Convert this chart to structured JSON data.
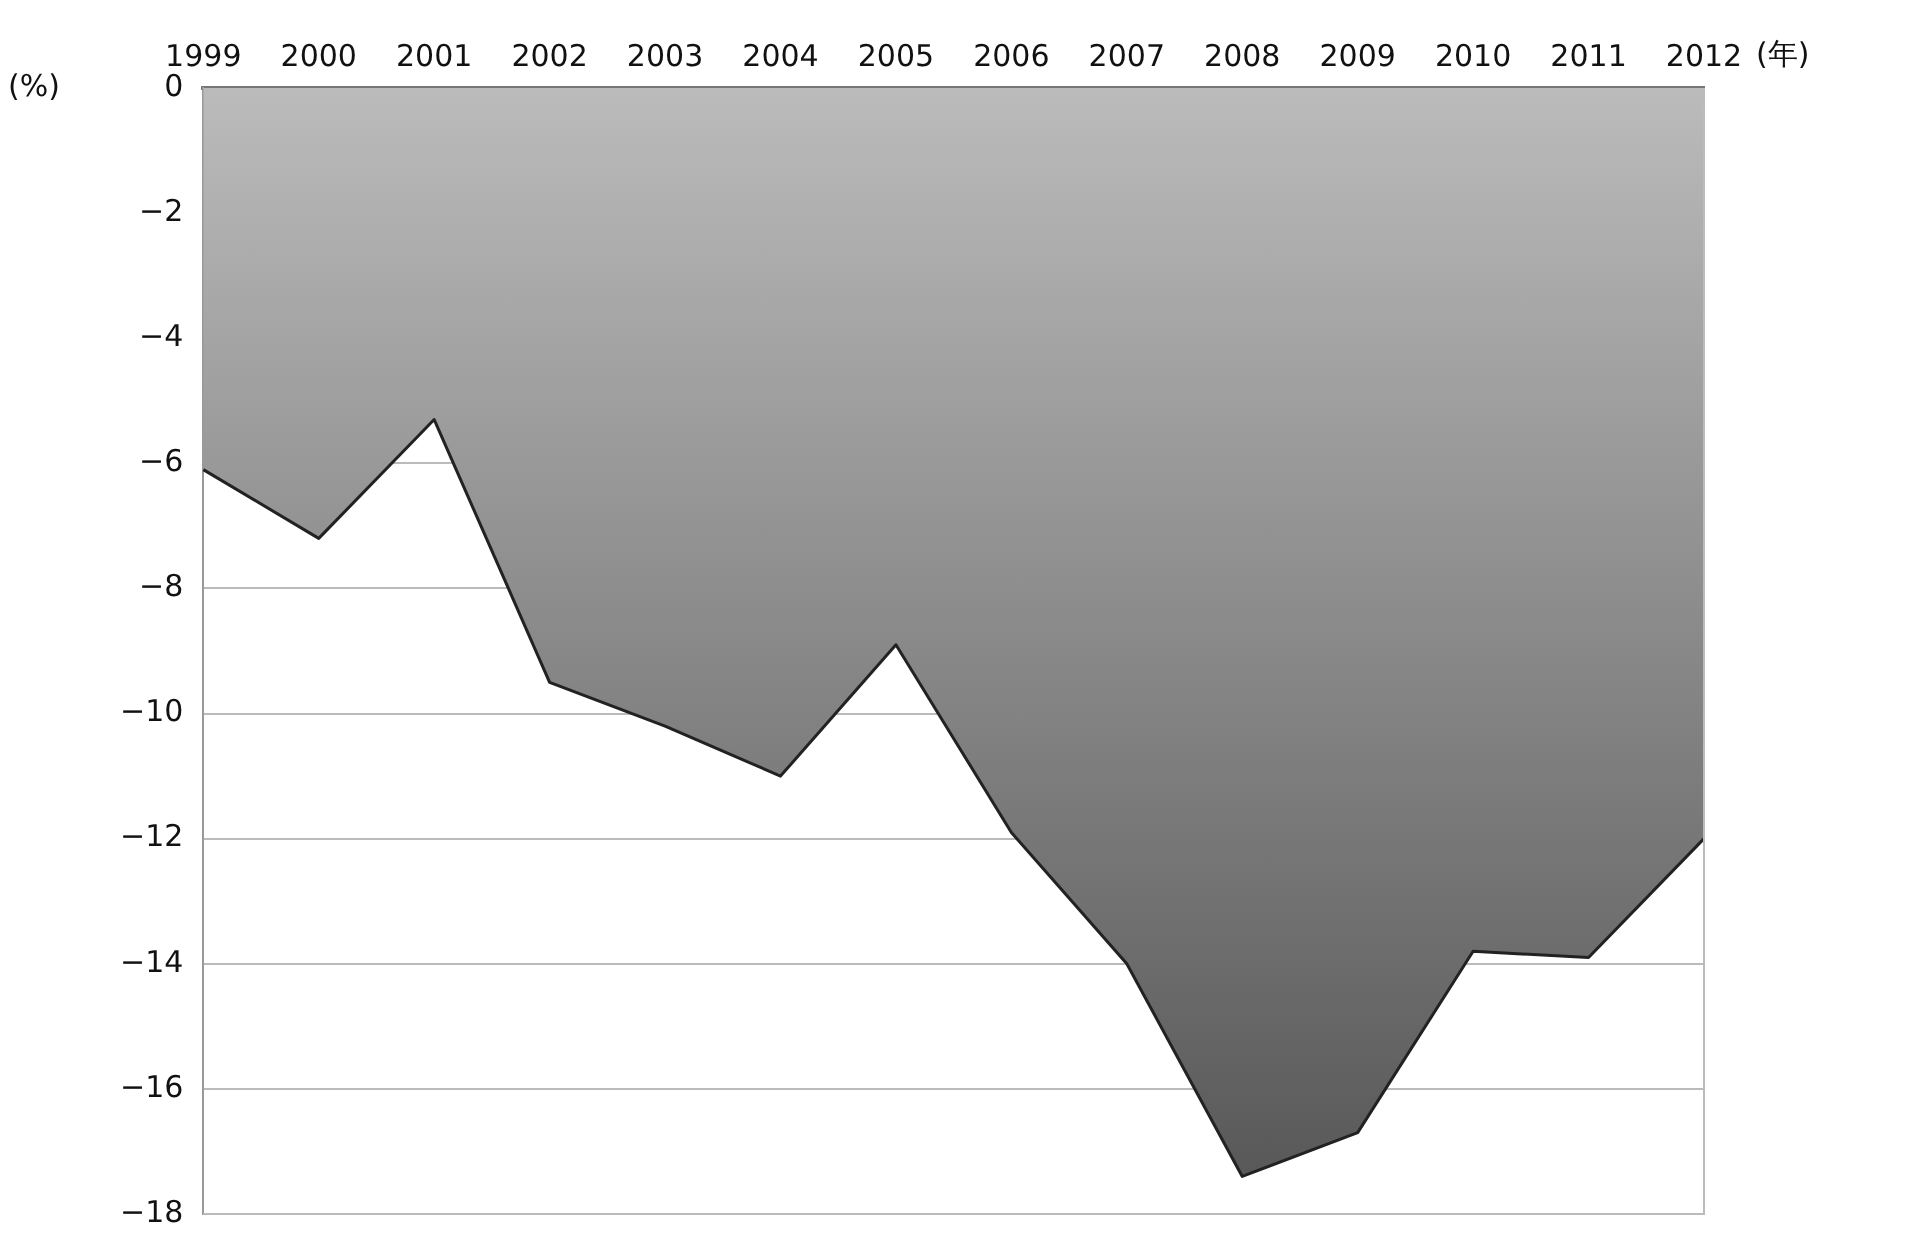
{
  "chart_data": {
    "type": "area",
    "xlabel": "(年)",
    "ylabel": "(%)",
    "categories": [
      "1999",
      "2000",
      "2001",
      "2002",
      "2003",
      "2004",
      "2005",
      "2006",
      "2007",
      "2008",
      "2009",
      "2010",
      "2011",
      "2012"
    ],
    "series": [
      {
        "color": "#555555",
        "values": [
          -6.1,
          -7.2,
          -5.3,
          -9.5,
          -10.2,
          -11.0,
          -8.9,
          -11.9,
          -14.0,
          -17.4,
          -16.7,
          -13.8,
          -13.9,
          -12.0
        ]
      }
    ],
    "ylim": [
      -18,
      0
    ],
    "yticks": [
      0,
      -2,
      -4,
      -6,
      -8,
      -10,
      -12,
      -14,
      -16,
      -18
    ],
    "grid": "y",
    "legend": false
  }
}
